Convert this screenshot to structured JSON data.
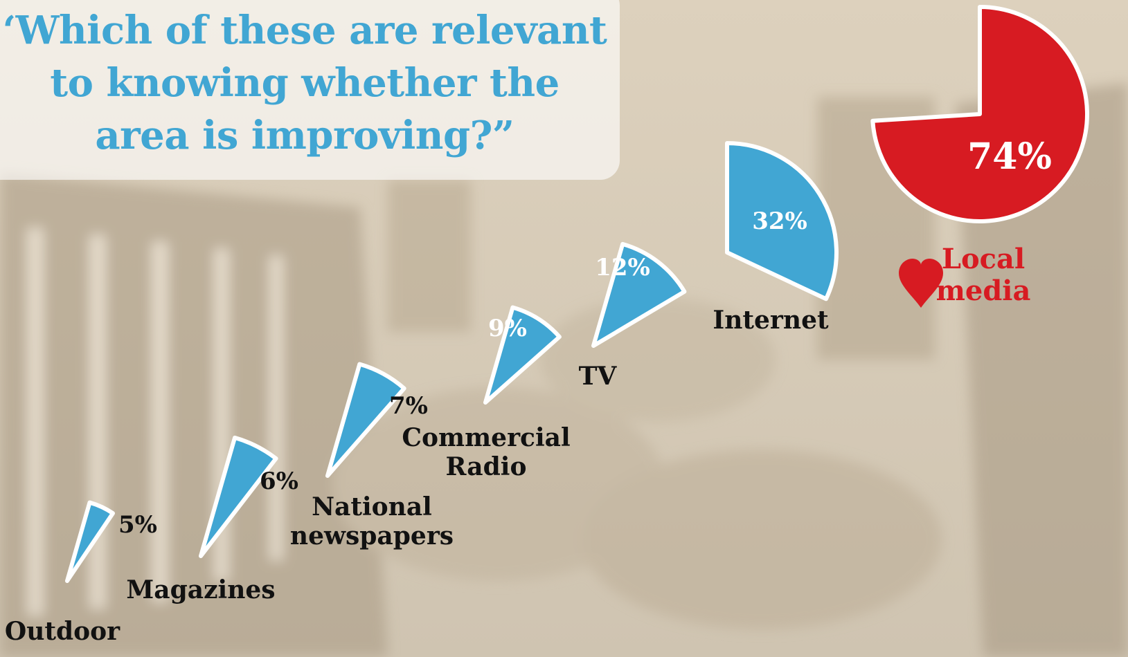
{
  "title": "‘Which of these are relevant to knowing whether the area is improving?”",
  "colors": {
    "slice": "#41a6d3",
    "highlight": "#d71b22",
    "outline": "#ffffff",
    "label": "#111111"
  },
  "icons": {
    "highlight_marker": "heart-icon"
  },
  "chart_data": {
    "type": "pie",
    "categories": [
      "Outdoor",
      "Magazines",
      "National newspapers",
      "Commercial Radio",
      "TV",
      "Internet",
      "Local media"
    ],
    "values": [
      5,
      6,
      7,
      9,
      12,
      32,
      74
    ],
    "value_labels": [
      "5%",
      "6%",
      "7%",
      "9%",
      "12%",
      "32%",
      "74%"
    ],
    "unit": "%",
    "highlight": "Local media"
  }
}
